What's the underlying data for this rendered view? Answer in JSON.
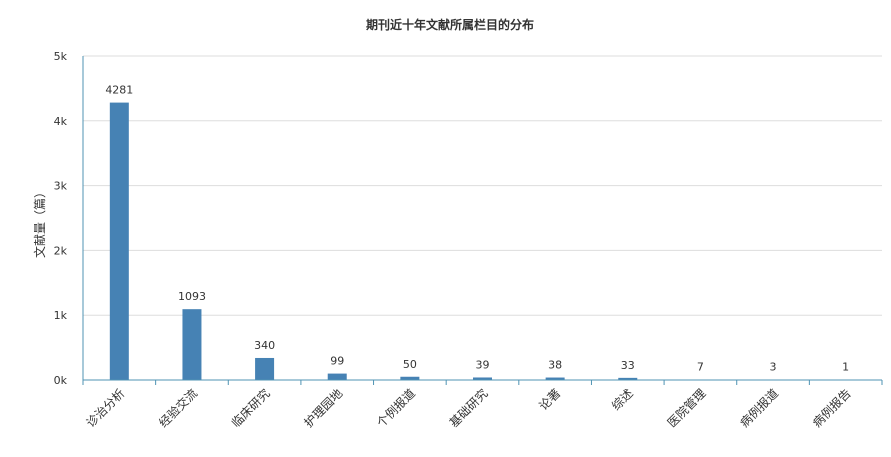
{
  "chart_data": {
    "type": "bar",
    "title": "期刊近十年文献所属栏目的分布",
    "xlabel": "",
    "ylabel": "文献量（篇）",
    "ylim": [
      0,
      5000
    ],
    "yticks": [
      {
        "value": 0,
        "label": "0k"
      },
      {
        "value": 1000,
        "label": "1k"
      },
      {
        "value": 2000,
        "label": "2k"
      },
      {
        "value": 3000,
        "label": "3k"
      },
      {
        "value": 4000,
        "label": "4k"
      },
      {
        "value": 5000,
        "label": "5k"
      }
    ],
    "categories": [
      "诊治分析",
      "经验交流",
      "临床研究",
      "护理园地",
      "个例报道",
      "基础研究",
      "论著",
      "综述",
      "医院管理",
      "病例报道",
      "病例报告"
    ],
    "values": [
      4281,
      1093,
      340,
      99,
      50,
      39,
      38,
      33,
      7,
      3,
      1
    ],
    "grid": true,
    "legend": "none",
    "bar_color": "#4682b4",
    "axis_color": "#4f93b3",
    "grid_color": "#dddddd",
    "text_color": "#333333"
  }
}
